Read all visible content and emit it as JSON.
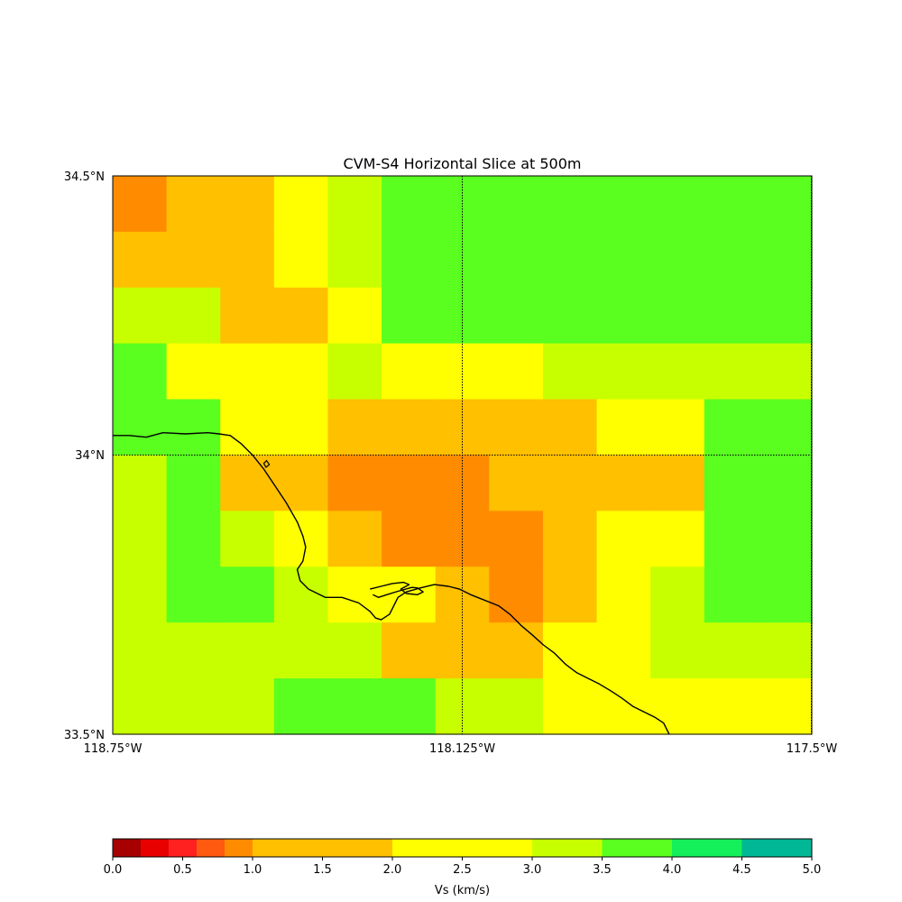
{
  "chart_data": {
    "type": "heatmap",
    "title": "CVM-S4 Horizontal Slice at 500m",
    "x_ticks": [
      "118.75°W",
      "118.125°W",
      "117.5°W"
    ],
    "y_ticks": [
      "34.5°N",
      "34°N",
      "33.5°N"
    ],
    "x_range_deg": [
      -118.75,
      -117.5
    ],
    "y_range_deg": [
      33.5,
      34.5
    ],
    "grid": {
      "style": "dotted",
      "lon": [
        -118.125
      ],
      "lat": [
        34.0
      ]
    },
    "colorbar": {
      "label": "Vs (km/s)",
      "bounds": [
        0.0,
        0.2,
        0.4,
        0.6,
        0.8,
        1.0,
        1.5,
        2.0,
        2.5,
        3.0,
        3.5,
        4.0,
        4.5,
        5.0
      ],
      "colors": [
        "#a60000",
        "#e80000",
        "#ff2020",
        "#ff5a10",
        "#ff8c00",
        "#ffc000",
        "#ffc000",
        "#ffff00",
        "#ffff00",
        "#c8ff00",
        "#5aff20",
        "#14f05a",
        "#00b896",
        "#0a46ff"
      ],
      "tick_labels": [
        "0.0",
        "0.5",
        "1.0",
        "1.5",
        "2.0",
        "2.5",
        "3.0",
        "3.5",
        "4.0",
        "4.5",
        "5.0"
      ],
      "tick_values": [
        0.0,
        0.5,
        1.0,
        1.5,
        2.0,
        2.5,
        3.0,
        3.5,
        4.0,
        4.5,
        5.0
      ]
    },
    "category_colors": {
      "O": "#ff8c00",
      "A": "#ffc000",
      "Y": "#ffff00",
      "L": "#c8ff00",
      "G": "#5aff20"
    },
    "category_values_kms": {
      "O": 0.9,
      "A": 1.25,
      "Y": 1.75,
      "L": 2.75,
      "G": 3.25
    },
    "cell_rows_north_to_south": [
      "OAAYLGGGGGGGG",
      "AAAYLGGGGGGGG",
      "LLAAYGGGGGGGG",
      "GYYYLYYYLLLLL",
      "GGYYAAAAAYYGG",
      "LGAAOOOAAAAGG",
      "LGLYAOOOAYYGG",
      "LGGLYYAOAYLGG",
      "LLLLLAAAYYLLL",
      "LLLGGGLLYYYYY"
    ],
    "coastline_lonlat": [
      [
        -118.75,
        34.035
      ],
      [
        -118.72,
        34.035
      ],
      [
        -118.69,
        34.032
      ],
      [
        -118.66,
        34.04
      ],
      [
        -118.62,
        34.038
      ],
      [
        -118.58,
        34.04
      ],
      [
        -118.56,
        34.038
      ],
      [
        -118.54,
        34.035
      ],
      [
        -118.52,
        34.02
      ],
      [
        -118.5,
        34.0
      ],
      [
        -118.48,
        33.975
      ],
      [
        -118.46,
        33.945
      ],
      [
        -118.44,
        33.915
      ],
      [
        -118.42,
        33.88
      ],
      [
        -118.41,
        33.855
      ],
      [
        -118.405,
        33.835
      ],
      [
        -118.41,
        33.81
      ],
      [
        -118.42,
        33.795
      ],
      [
        -118.415,
        33.775
      ],
      [
        -118.4,
        33.76
      ],
      [
        -118.37,
        33.745
      ],
      [
        -118.34,
        33.745
      ],
      [
        -118.31,
        33.735
      ],
      [
        -118.29,
        33.72
      ],
      [
        -118.28,
        33.708
      ],
      [
        -118.27,
        33.705
      ],
      [
        -118.255,
        33.715
      ],
      [
        -118.245,
        33.735
      ],
      [
        -118.24,
        33.745
      ],
      [
        -118.225,
        33.755
      ],
      [
        -118.2,
        33.762
      ],
      [
        -118.175,
        33.768
      ],
      [
        -118.15,
        33.765
      ],
      [
        -118.13,
        33.76
      ],
      [
        -118.11,
        33.75
      ],
      [
        -118.09,
        33.742
      ],
      [
        -118.06,
        33.73
      ],
      [
        -118.04,
        33.715
      ],
      [
        -118.02,
        33.695
      ],
      [
        -118.0,
        33.678
      ],
      [
        -117.98,
        33.66
      ],
      [
        -117.96,
        33.645
      ],
      [
        -117.94,
        33.625
      ],
      [
        -117.92,
        33.61
      ],
      [
        -117.9,
        33.6
      ],
      [
        -117.88,
        33.59
      ],
      [
        -117.86,
        33.578
      ],
      [
        -117.84,
        33.565
      ],
      [
        -117.82,
        33.55
      ],
      [
        -117.8,
        33.54
      ],
      [
        -117.78,
        33.53
      ],
      [
        -117.765,
        33.52
      ],
      [
        -117.755,
        33.5
      ]
    ],
    "harbor_lonlat": [
      [
        -118.29,
        33.76
      ],
      [
        -118.27,
        33.765
      ],
      [
        -118.25,
        33.77
      ],
      [
        -118.23,
        33.772
      ],
      [
        -118.22,
        33.768
      ],
      [
        -118.235,
        33.76
      ],
      [
        -118.225,
        33.752
      ],
      [
        -118.205,
        33.75
      ],
      [
        -118.195,
        33.755
      ],
      [
        -118.205,
        33.762
      ],
      [
        -118.215,
        33.763
      ],
      [
        -118.24,
        33.756
      ],
      [
        -118.26,
        33.75
      ],
      [
        -118.275,
        33.745
      ],
      [
        -118.285,
        33.75
      ]
    ],
    "island_lonlat": [
      [
        -118.48,
        33.985
      ],
      [
        -118.475,
        33.99
      ],
      [
        -118.47,
        33.983
      ],
      [
        -118.476,
        33.978
      ]
    ]
  }
}
